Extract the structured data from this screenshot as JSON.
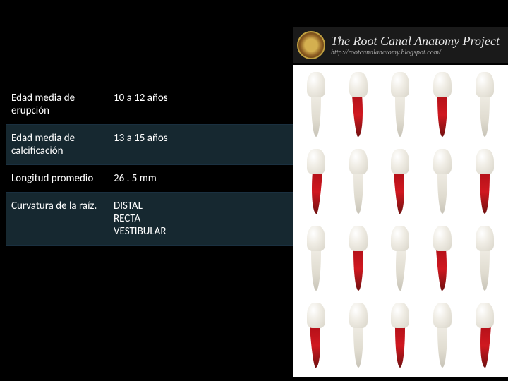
{
  "banner": {
    "title": "The Root Canal Anatomy Project",
    "url": "http://rootcanalanatomy.blogspot.com/"
  },
  "table": {
    "rows": [
      {
        "label": "Edad media de erupción",
        "value": "10 a  12 años",
        "bg": "dark"
      },
      {
        "label": "Edad media de calcificación",
        "value": "13  a 15 años",
        "bg": "teal"
      },
      {
        "label": "Longitud promedio",
        "value": "26 . 5  mm",
        "bg": "dark"
      },
      {
        "label": "Curvatura  de la raíz.",
        "value": "DISTAL\nRECTA\nVESTIBULAR",
        "bg": "teal"
      }
    ],
    "colors": {
      "dark_bg": "#000000",
      "teal_bg": "#162830",
      "border": "#1a3040",
      "text": "#ffffff"
    },
    "font_size": 15
  },
  "teeth": {
    "grid": {
      "cols": 5,
      "rows": 4
    },
    "background": "#ffffff",
    "cells": [
      {
        "root": "white",
        "curve": ""
      },
      {
        "root": "red",
        "curve": "r"
      },
      {
        "root": "white",
        "curve": ""
      },
      {
        "root": "red",
        "curve": ""
      },
      {
        "root": "white",
        "curve": ""
      },
      {
        "root": "red",
        "curve": "l"
      },
      {
        "root": "white",
        "curve": ""
      },
      {
        "root": "red",
        "curve": "r"
      },
      {
        "root": "white",
        "curve": ""
      },
      {
        "root": "red",
        "curve": ""
      },
      {
        "root": "white",
        "curve": ""
      },
      {
        "root": "red",
        "curve": ""
      },
      {
        "root": "white",
        "curve": "l"
      },
      {
        "root": "red",
        "curve": "r"
      },
      {
        "root": "white",
        "curve": ""
      },
      {
        "root": "red",
        "curve": "r"
      },
      {
        "root": "white",
        "curve": ""
      },
      {
        "root": "red",
        "curve": ""
      },
      {
        "root": "white",
        "curve": ""
      },
      {
        "root": "red",
        "curve": "l"
      }
    ]
  }
}
